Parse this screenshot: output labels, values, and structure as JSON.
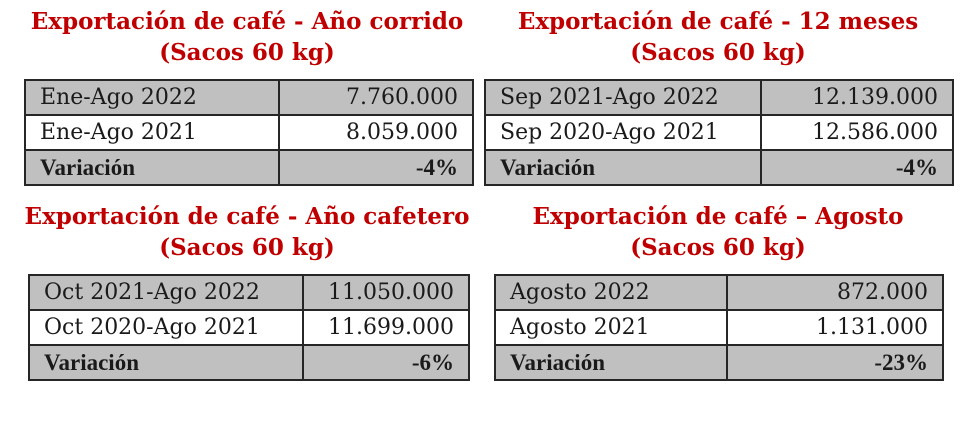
{
  "colors": {
    "title": "#c00000",
    "header_row": "#c0c0c0",
    "border": "#262626"
  },
  "tables": [
    {
      "title_line1": "Exportación de café - Año corrido",
      "title_line2": "(Sacos 60 kg)",
      "rows": [
        {
          "label": "Ene-Ago 2022",
          "value": "7.760.000"
        },
        {
          "label": "Ene-Ago 2021",
          "value": "8.059.000"
        }
      ],
      "variation_label": "Variación",
      "variation_value": "-4%"
    },
    {
      "title_line1": "Exportación de café - 12 meses",
      "title_line2": "(Sacos 60 kg)",
      "rows": [
        {
          "label": "Sep 2021-Ago 2022",
          "value": "12.139.000"
        },
        {
          "label": "Sep 2020-Ago 2021",
          "value": "12.586.000"
        }
      ],
      "variation_label": "Variación",
      "variation_value": "-4%"
    },
    {
      "title_line1": "Exportación de café - Año cafetero",
      "title_line2": "(Sacos 60 kg)",
      "rows": [
        {
          "label": "Oct 2021-Ago 2022",
          "value": "11.050.000"
        },
        {
          "label": "Oct 2020-Ago 2021",
          "value": "11.699.000"
        }
      ],
      "variation_label": "Variación",
      "variation_value": "-6%"
    },
    {
      "title_line1": "Exportación de café – Agosto",
      "title_line2": "(Sacos 60 kg)",
      "rows": [
        {
          "label": "Agosto 2022",
          "value": "872.000"
        },
        {
          "label": "Agosto 2021",
          "value": "1.131.000"
        }
      ],
      "variation_label": "Variación",
      "variation_value": "-23%"
    }
  ]
}
